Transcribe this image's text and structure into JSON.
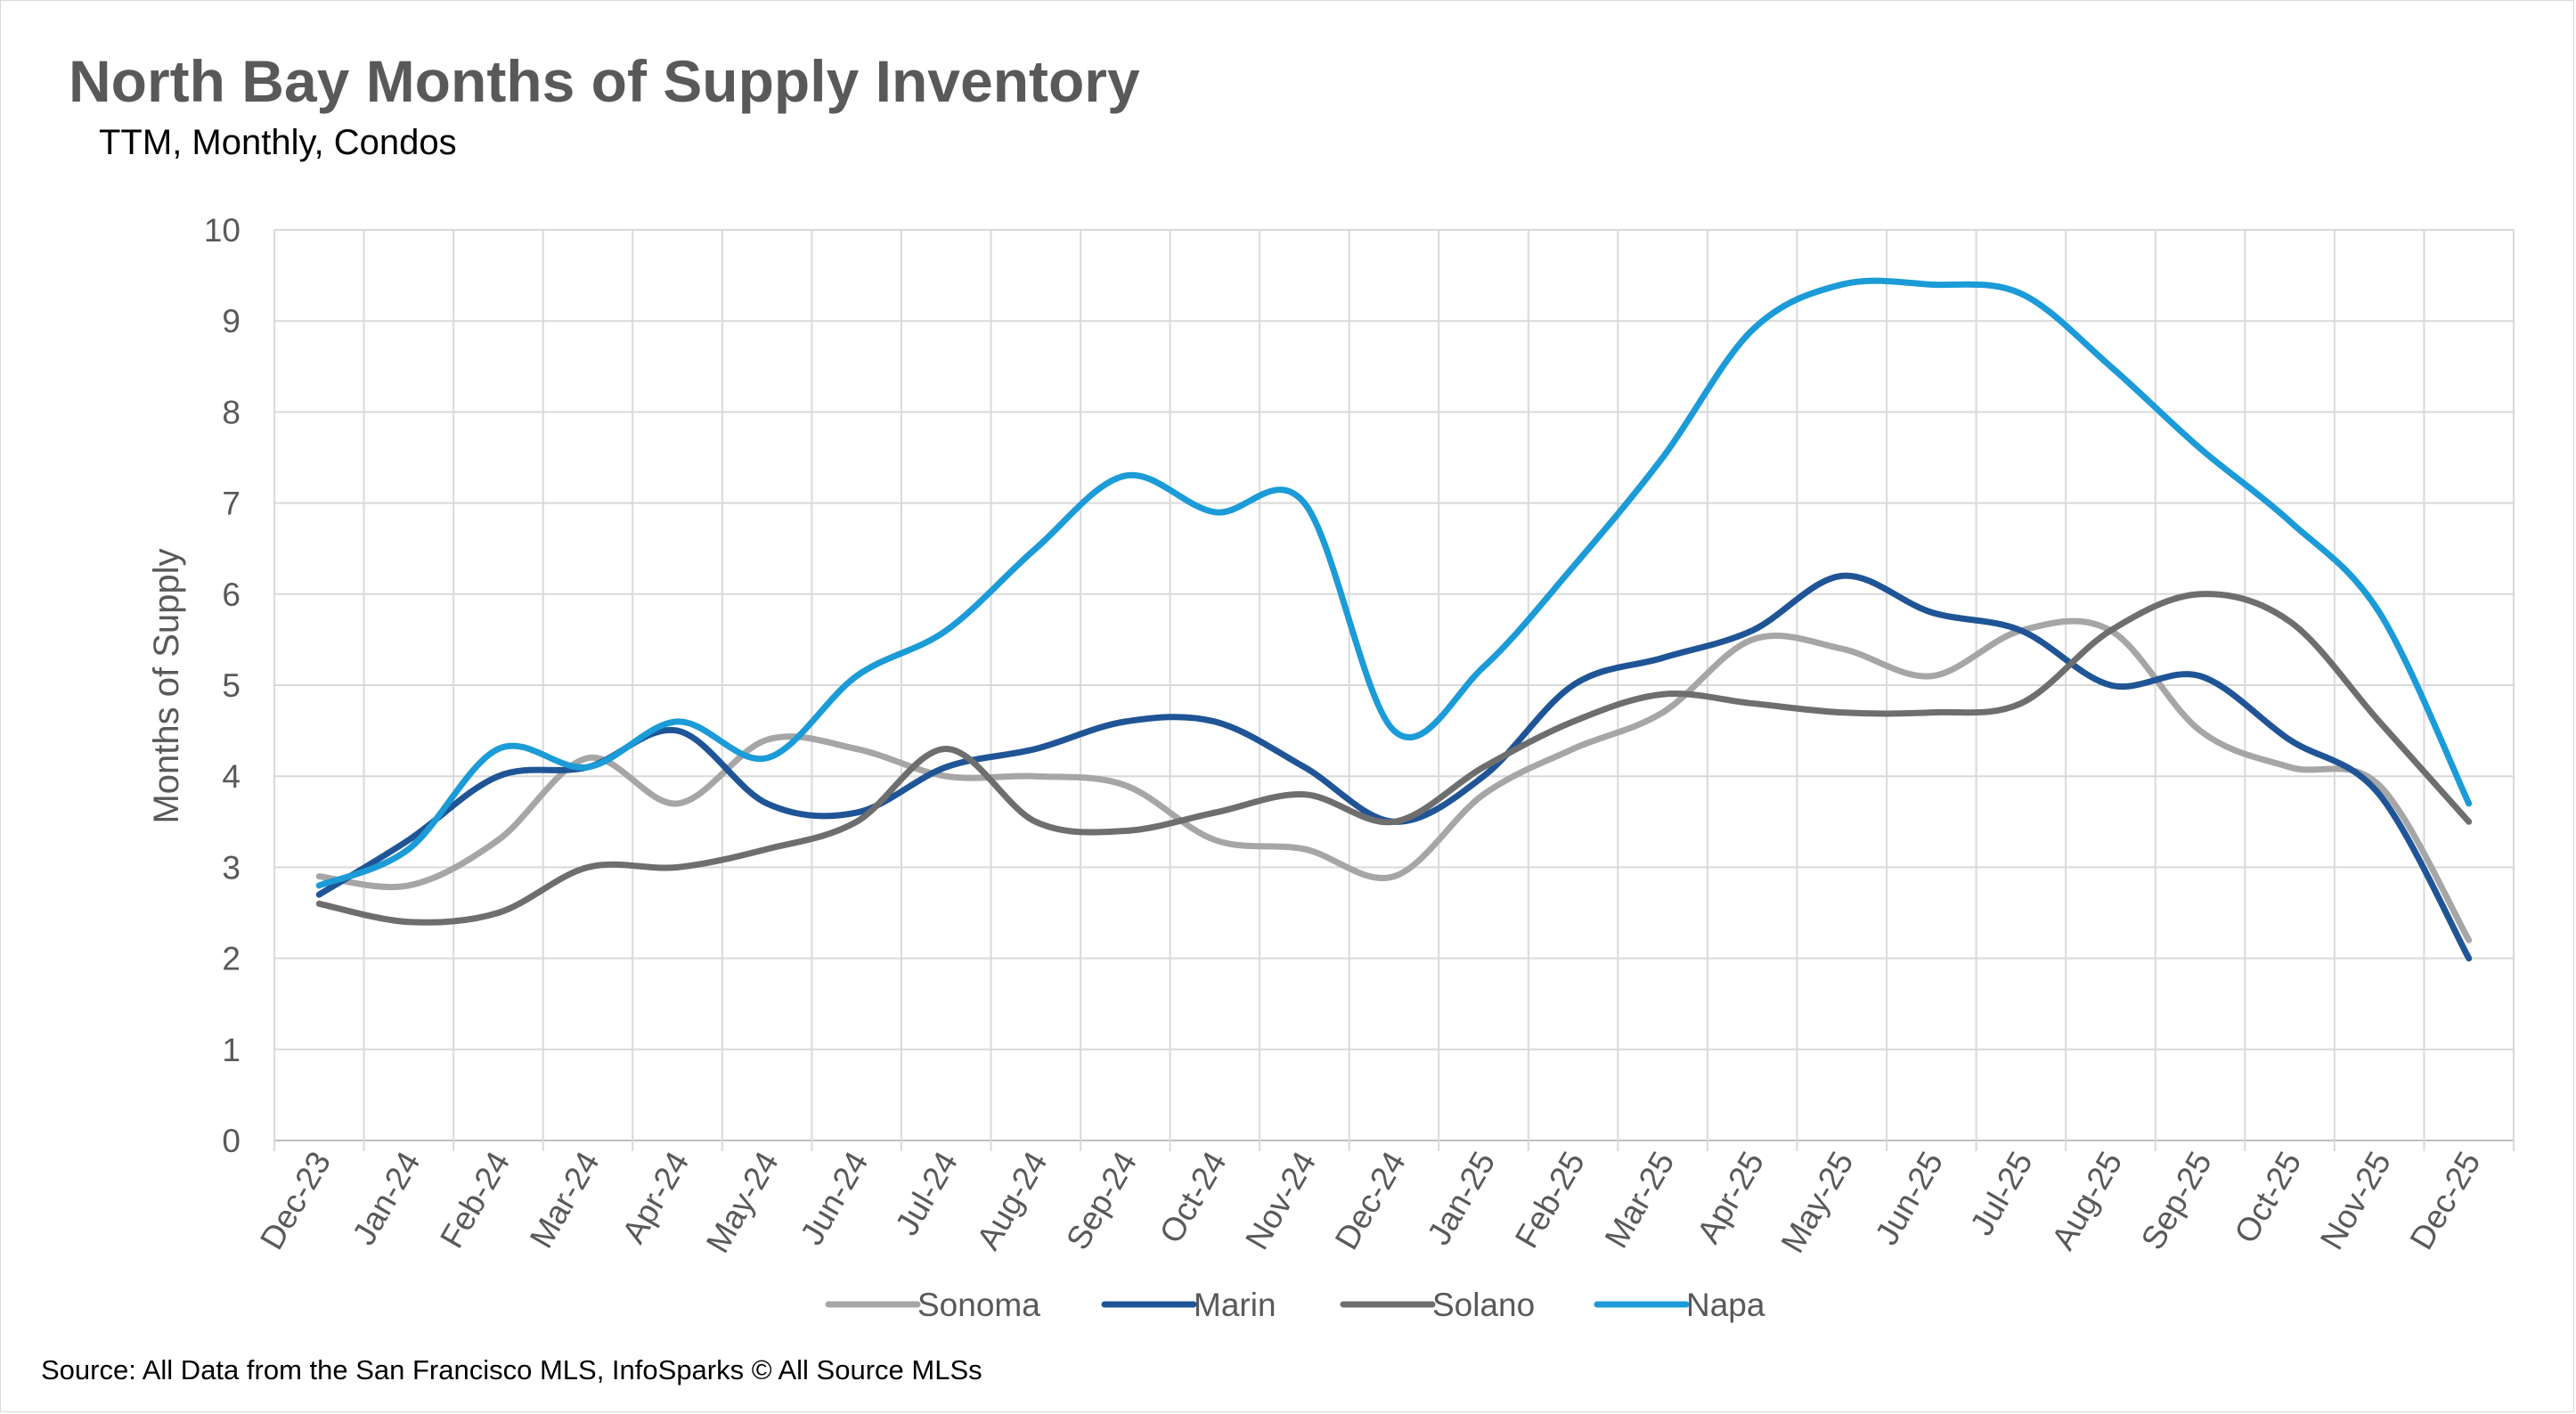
{
  "chart_data": {
    "type": "line",
    "title": "North Bay Months of Supply Inventory",
    "subtitle": "TTM, Monthly, Condos",
    "ylabel": "Months of Supply",
    "xlabel": "",
    "source": "Source: All Data from the San Francisco MLS, InfoSparks © All Source MLSs",
    "ylim": [
      0,
      10
    ],
    "yticks": [
      "0",
      "1",
      "2",
      "3",
      "4",
      "5",
      "6",
      "7",
      "8",
      "9",
      "10"
    ],
    "grid": true,
    "legend_position": "bottom",
    "categories": [
      "Dec-23",
      "Jan-24",
      "Feb-24",
      "Mar-24",
      "Apr-24",
      "May-24",
      "Jun-24",
      "Jul-24",
      "Aug-24",
      "Sep-24",
      "Oct-24",
      "Nov-24",
      "Dec-24",
      "Jan-25",
      "Feb-25",
      "Mar-25",
      "Apr-25",
      "May-25",
      "Jun-25",
      "Jul-25",
      "Aug-25",
      "Sep-25",
      "Oct-25",
      "Nov-25",
      "Dec-25"
    ],
    "series": [
      {
        "name": "Sonoma",
        "color": "#a6a6a6",
        "values": [
          2.9,
          2.8,
          3.3,
          4.2,
          3.7,
          4.4,
          4.3,
          4.0,
          4.0,
          3.9,
          3.3,
          3.2,
          2.9,
          3.8,
          4.3,
          4.7,
          5.5,
          5.4,
          5.1,
          5.6,
          5.6,
          4.5,
          4.1,
          3.9,
          2.2
        ]
      },
      {
        "name": "Marin",
        "color": "#1f5596",
        "values": [
          2.7,
          3.3,
          4.0,
          4.1,
          4.5,
          3.7,
          3.6,
          4.1,
          4.3,
          4.6,
          4.6,
          4.1,
          3.5,
          4.0,
          5.0,
          5.3,
          5.6,
          6.2,
          5.8,
          5.6,
          5.0,
          5.1,
          4.4,
          3.8,
          2.0
        ]
      },
      {
        "name": "Solano",
        "color": "#6e6e6e",
        "values": [
          2.6,
          2.4,
          2.5,
          3.0,
          3.0,
          3.2,
          3.5,
          4.3,
          3.5,
          3.4,
          3.6,
          3.8,
          3.5,
          4.1,
          4.6,
          4.9,
          4.8,
          4.7,
          4.7,
          4.8,
          5.6,
          6.0,
          5.7,
          4.6,
          3.5
        ]
      },
      {
        "name": "Napa",
        "color": "#1b9bd7",
        "values": [
          2.8,
          3.2,
          4.3,
          4.1,
          4.6,
          4.2,
          5.1,
          5.6,
          6.5,
          7.3,
          6.9,
          7.0,
          4.5,
          5.2,
          6.3,
          7.5,
          8.9,
          9.4,
          9.4,
          9.3,
          8.5,
          7.6,
          6.8,
          5.8,
          3.7
        ]
      }
    ]
  }
}
